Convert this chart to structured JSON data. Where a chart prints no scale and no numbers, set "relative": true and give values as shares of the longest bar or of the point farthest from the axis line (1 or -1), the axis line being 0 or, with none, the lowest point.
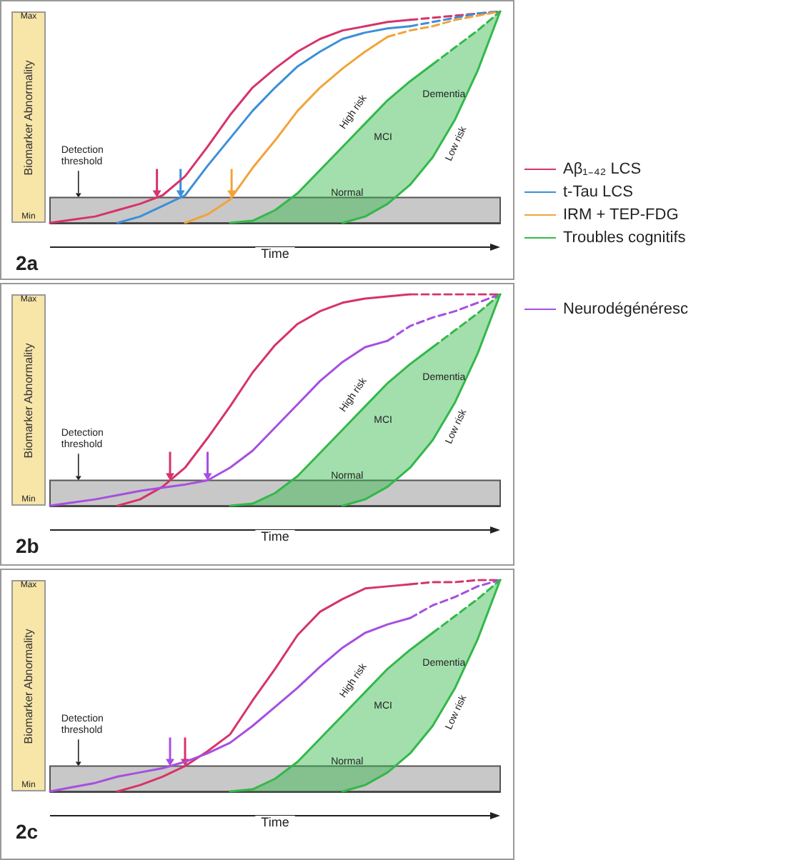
{
  "chart_data": [
    {
      "type": "line",
      "title": "2a",
      "xlabel": "Time",
      "ylabel": "Biomarker Abnormality",
      "categories": [
        null,
        null,
        null,
        null,
        null,
        null,
        null,
        null,
        null,
        null,
        null,
        null,
        null,
        null,
        null,
        null,
        null,
        null,
        null,
        null,
        null
      ],
      "relative": true,
      "marker": "none",
      "legend": "right",
      "bands": [
        {
          "axis": "y",
          "from": 0,
          "to": 0.12,
          "color": "#c8c8c8"
        }
      ],
      "annotations": [
        "Detection threshold",
        "Normal",
        "MCI",
        "Dementia",
        "High risk",
        "Low risk",
        "Min",
        "Max"
      ],
      "series": [
        {
          "name": "Aβ₁₋₄₂ LCS",
          "color": "#d6336b",
          "values": [
            0,
            0.015,
            0.03,
            0.06,
            0.09,
            0.13,
            0.22,
            0.36,
            0.51,
            0.64,
            0.73,
            0.81,
            0.87,
            0.91,
            0.93,
            0.95,
            0.96,
            null,
            null,
            null,
            null
          ]
        },
        {
          "color": "#d6336b",
          "line_style": "dashed",
          "values": [
            null,
            null,
            null,
            null,
            null,
            null,
            null,
            null,
            null,
            null,
            null,
            null,
            null,
            null,
            null,
            null,
            0.96,
            0.97,
            0.98,
            0.99,
            1
          ]
        },
        {
          "name": "t-Tau LCS",
          "color": "#3b8fd9",
          "values": [
            null,
            null,
            null,
            0,
            0.03,
            0.08,
            0.13,
            0.27,
            0.4,
            0.53,
            0.64,
            0.74,
            0.81,
            0.87,
            0.9,
            0.92,
            0.93,
            null,
            null,
            null,
            null
          ]
        },
        {
          "color": "#3b8fd9",
          "line_style": "dashed",
          "values": [
            null,
            null,
            null,
            null,
            null,
            null,
            null,
            null,
            null,
            null,
            null,
            null,
            null,
            null,
            null,
            null,
            0.93,
            0.95,
            0.97,
            0.99,
            1
          ]
        },
        {
          "name": "IRM + TEP-FDG",
          "color": "#f2a33a",
          "values": [
            null,
            null,
            null,
            null,
            null,
            null,
            0,
            0.04,
            0.11,
            0.26,
            0.39,
            0.53,
            0.64,
            0.73,
            0.81,
            0.88,
            null,
            null,
            null,
            null,
            null
          ]
        },
        {
          "color": "#f2a33a",
          "line_style": "dashed",
          "values": [
            null,
            null,
            null,
            null,
            null,
            null,
            null,
            null,
            null,
            null,
            null,
            null,
            null,
            null,
            null,
            0.88,
            0.91,
            0.93,
            0.96,
            0.98,
            1
          ]
        },
        {
          "name": "Troubles cognitifs",
          "color": "#33b84a",
          "values": [
            null,
            null,
            null,
            null,
            null,
            null,
            null,
            null,
            0,
            0.01,
            0.06,
            0.14,
            0.25,
            0.36,
            0.47,
            0.58,
            0.67,
            0.75,
            null,
            null,
            null
          ],
          "lower": [
            null,
            null,
            null,
            null,
            null,
            null,
            null,
            null,
            0,
            0,
            0,
            0,
            0,
            0,
            0.03,
            0.09,
            0.18,
            0.31,
            0.49,
            0.72,
            1
          ],
          "upper": [
            null,
            null,
            null,
            null,
            null,
            null,
            null,
            null,
            0,
            0.01,
            0.06,
            0.14,
            0.25,
            0.36,
            0.47,
            0.58,
            0.67,
            0.75,
            0.83,
            0.91,
            1
          ]
        },
        {
          "color": "#33b84a",
          "line_style": "dashed",
          "values": [
            null,
            null,
            null,
            null,
            null,
            null,
            null,
            null,
            null,
            null,
            null,
            null,
            null,
            null,
            null,
            null,
            null,
            0.75,
            0.83,
            0.91,
            1
          ]
        },
        {
          "color": "#33b84a",
          "values": [
            null,
            null,
            null,
            null,
            null,
            null,
            null,
            null,
            null,
            null,
            null,
            null,
            null,
            0,
            0.03,
            0.09,
            0.18,
            0.31,
            0.49,
            0.72,
            1
          ]
        }
      ]
    },
    {
      "type": "line",
      "title": "2b",
      "xlabel": "Time",
      "ylabel": "Biomarker Abnormality",
      "categories": [
        null,
        null,
        null,
        null,
        null,
        null,
        null,
        null,
        null,
        null,
        null,
        null,
        null,
        null,
        null,
        null,
        null,
        null,
        null,
        null,
        null
      ],
      "relative": true,
      "marker": "none",
      "legend": "right",
      "bands": [
        {
          "axis": "y",
          "from": 0,
          "to": 0.12,
          "color": "#c8c8c8"
        }
      ],
      "annotations": [
        "Detection threshold",
        "Normal",
        "MCI",
        "Dementia",
        "High risk",
        "Low risk",
        "Min",
        "Max"
      ],
      "series": [
        {
          "color": "#d6336b",
          "values": [
            null,
            null,
            null,
            0,
            0.03,
            0.09,
            0.18,
            0.32,
            0.47,
            0.63,
            0.76,
            0.86,
            0.92,
            0.96,
            0.98,
            0.99,
            1,
            null,
            null,
            null,
            null
          ]
        },
        {
          "color": "#d6336b",
          "line_style": "dashed",
          "values": [
            null,
            null,
            null,
            null,
            null,
            null,
            null,
            null,
            null,
            null,
            null,
            null,
            null,
            null,
            null,
            null,
            1,
            1,
            1,
            1,
            1
          ]
        },
        {
          "name": "Neurodégénéresc",
          "color": "#a64fe0",
          "values": [
            0,
            0.015,
            0.03,
            0.05,
            0.07,
            0.085,
            0.1,
            0.12,
            0.18,
            0.26,
            0.37,
            0.48,
            0.59,
            0.68,
            0.75,
            0.78,
            null,
            null,
            null,
            null,
            null
          ]
        },
        {
          "color": "#a64fe0",
          "line_style": "dashed",
          "values": [
            null,
            null,
            null,
            null,
            null,
            null,
            null,
            null,
            null,
            null,
            null,
            null,
            null,
            null,
            null,
            0.78,
            0.85,
            0.89,
            0.92,
            0.96,
            1
          ]
        },
        {
          "color": "#33b84a",
          "values": [
            null,
            null,
            null,
            null,
            null,
            null,
            null,
            null,
            0,
            0.01,
            0.06,
            0.14,
            0.25,
            0.36,
            0.47,
            0.58,
            0.67,
            0.75,
            null,
            null,
            null
          ],
          "lower": [
            null,
            null,
            null,
            null,
            null,
            null,
            null,
            null,
            0,
            0,
            0,
            0,
            0,
            0,
            0.03,
            0.09,
            0.18,
            0.31,
            0.49,
            0.72,
            1
          ],
          "upper": [
            null,
            null,
            null,
            null,
            null,
            null,
            null,
            null,
            0,
            0.01,
            0.06,
            0.14,
            0.25,
            0.36,
            0.47,
            0.58,
            0.67,
            0.75,
            0.83,
            0.91,
            1
          ]
        },
        {
          "color": "#33b84a",
          "line_style": "dashed",
          "values": [
            null,
            null,
            null,
            null,
            null,
            null,
            null,
            null,
            null,
            null,
            null,
            null,
            null,
            null,
            null,
            null,
            null,
            0.75,
            0.83,
            0.91,
            1
          ]
        },
        {
          "color": "#33b84a",
          "values": [
            null,
            null,
            null,
            null,
            null,
            null,
            null,
            null,
            null,
            null,
            null,
            null,
            null,
            0,
            0.03,
            0.09,
            0.18,
            0.31,
            0.49,
            0.72,
            1
          ]
        }
      ]
    },
    {
      "type": "line",
      "title": "2c",
      "xlabel": "Time",
      "ylabel": "Biomarker Abnormality",
      "categories": [
        null,
        null,
        null,
        null,
        null,
        null,
        null,
        null,
        null,
        null,
        null,
        null,
        null,
        null,
        null,
        null,
        null,
        null,
        null,
        null,
        null
      ],
      "relative": true,
      "marker": "none",
      "bands": [
        {
          "axis": "y",
          "from": 0,
          "to": 0.12,
          "color": "#c8c8c8"
        }
      ],
      "annotations": [
        "Detection threshold",
        "Normal",
        "MCI",
        "Dementia",
        "High risk",
        "Low risk",
        "Min",
        "Max"
      ],
      "series": [
        {
          "color": "#d6336b",
          "values": [
            null,
            null,
            null,
            0,
            0.03,
            0.07,
            0.12,
            0.19,
            0.27,
            0.43,
            0.58,
            0.74,
            0.85,
            0.91,
            0.96,
            0.97,
            0.98,
            null,
            null,
            null,
            null
          ]
        },
        {
          "color": "#d6336b",
          "line_style": "dashed",
          "values": [
            null,
            null,
            null,
            null,
            null,
            null,
            null,
            null,
            null,
            null,
            null,
            null,
            null,
            null,
            null,
            null,
            0.98,
            0.99,
            0.99,
            1,
            1
          ]
        },
        {
          "color": "#a64fe0",
          "values": [
            0,
            0.02,
            0.04,
            0.07,
            0.09,
            0.11,
            0.14,
            0.18,
            0.23,
            0.31,
            0.4,
            0.49,
            0.59,
            0.68,
            0.75,
            0.79,
            0.82,
            null,
            null,
            null,
            null
          ]
        },
        {
          "color": "#a64fe0",
          "line_style": "dashed",
          "values": [
            null,
            null,
            null,
            null,
            null,
            null,
            null,
            null,
            null,
            null,
            null,
            null,
            null,
            null,
            null,
            null,
            0.82,
            0.88,
            0.92,
            0.97,
            1
          ]
        },
        {
          "color": "#33b84a",
          "values": [
            null,
            null,
            null,
            null,
            null,
            null,
            null,
            null,
            0,
            0.01,
            0.06,
            0.14,
            0.25,
            0.36,
            0.47,
            0.58,
            0.67,
            0.75,
            null,
            null,
            null
          ],
          "lower": [
            null,
            null,
            null,
            null,
            null,
            null,
            null,
            null,
            0,
            0,
            0,
            0,
            0,
            0,
            0.03,
            0.09,
            0.18,
            0.31,
            0.49,
            0.72,
            1
          ],
          "upper": [
            null,
            null,
            null,
            null,
            null,
            null,
            null,
            null,
            0,
            0.01,
            0.06,
            0.14,
            0.25,
            0.36,
            0.47,
            0.58,
            0.67,
            0.75,
            0.83,
            0.91,
            1
          ]
        },
        {
          "color": "#33b84a",
          "line_style": "dashed",
          "values": [
            null,
            null,
            null,
            null,
            null,
            null,
            null,
            null,
            null,
            null,
            null,
            null,
            null,
            null,
            null,
            null,
            null,
            0.75,
            0.83,
            0.91,
            1
          ]
        },
        {
          "color": "#33b84a",
          "values": [
            null,
            null,
            null,
            null,
            null,
            null,
            null,
            null,
            null,
            null,
            null,
            null,
            null,
            0,
            0.03,
            0.09,
            0.18,
            0.31,
            0.49,
            0.72,
            1
          ]
        }
      ]
    }
  ]
}
